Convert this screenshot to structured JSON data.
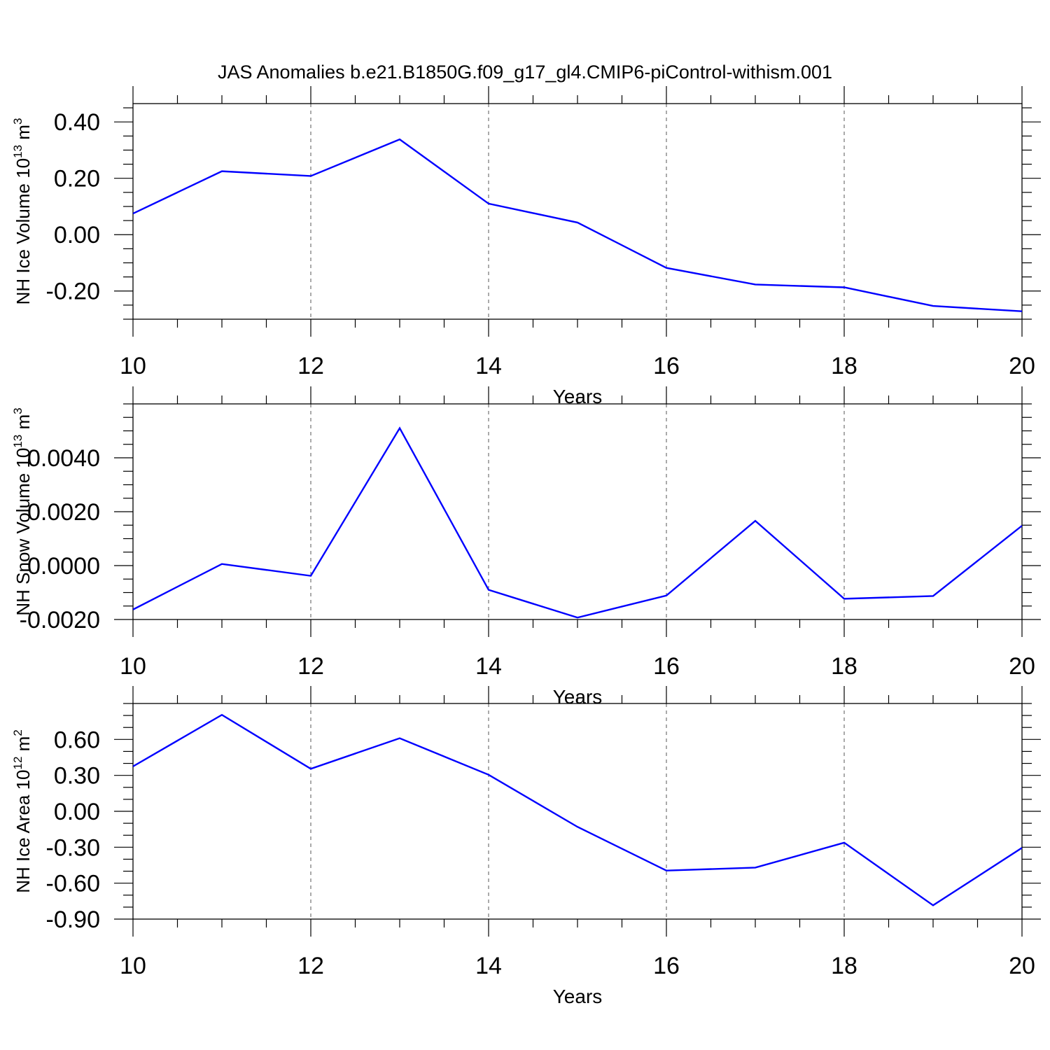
{
  "title": "JAS Anomalies b.e21.B1850G.f09_g17_gl4.CMIP6-piControl-withism.001",
  "colors": {
    "series": "#0000ff",
    "axis": "#000000",
    "grid": "#555555",
    "background": "#ffffff"
  },
  "chart_data": [
    {
      "type": "line",
      "xlabel": "Years",
      "ylabel": {
        "text": "NH Ice Volume 10",
        "sup": "13",
        "unit": " m",
        "unit_sup": "3"
      },
      "x": [
        10,
        11,
        12,
        13,
        14,
        15,
        16,
        17,
        18,
        19,
        20
      ],
      "series": [
        {
          "values": [
            0.075,
            0.225,
            0.208,
            0.338,
            0.11,
            0.043,
            -0.118,
            -0.177,
            -0.187,
            -0.253,
            -0.272
          ]
        }
      ],
      "xlim": [
        10,
        20
      ],
      "ylim": [
        -0.3,
        0.465
      ],
      "xticks": [
        10,
        12,
        14,
        16,
        18,
        20
      ],
      "xtick_labels": [
        "10",
        "12",
        "14",
        "16",
        "18",
        "20"
      ],
      "yticks": [
        0.4,
        0.2,
        0.0,
        -0.2
      ],
      "ytick_labels": [
        "0.40",
        "0.20",
        "0.00",
        "-0.20"
      ],
      "yminor_step": 0.05,
      "grid": "vertical dashed at major x ticks"
    },
    {
      "type": "line",
      "xlabel": "Years",
      "ylabel": {
        "text": "NH Snow Volume 10",
        "sup": "13",
        "unit": " m",
        "unit_sup": "3"
      },
      "x": [
        10,
        11,
        12,
        13,
        14,
        15,
        16,
        17,
        18,
        19,
        20
      ],
      "series": [
        {
          "values": [
            -0.00163,
            6e-05,
            -0.00038,
            0.0051,
            -0.0009,
            -0.00193,
            -0.00111,
            0.00166,
            -0.00123,
            -0.00113,
            0.00148
          ]
        }
      ],
      "xlim": [
        10,
        20
      ],
      "ylim": [
        -0.002,
        0.006
      ],
      "xticks": [
        10,
        12,
        14,
        16,
        18,
        20
      ],
      "xtick_labels": [
        "10",
        "12",
        "14",
        "16",
        "18",
        "20"
      ],
      "yticks": [
        0.004,
        0.002,
        0.0,
        -0.002
      ],
      "ytick_labels": [
        "0.0040",
        "0.0020",
        "0.0000",
        "-0.0020"
      ],
      "yminor_step": 0.0005,
      "grid": "vertical dashed at major x ticks"
    },
    {
      "type": "line",
      "xlabel": "Years",
      "ylabel": {
        "text": "NH Ice Area 10",
        "sup": "12",
        "unit": " m",
        "unit_sup": "2"
      },
      "x": [
        10,
        11,
        12,
        13,
        14,
        15,
        16,
        17,
        18,
        19,
        20
      ],
      "series": [
        {
          "values": [
            0.375,
            0.805,
            0.355,
            0.61,
            0.305,
            -0.13,
            -0.495,
            -0.47,
            -0.262,
            -0.785,
            -0.305
          ]
        }
      ],
      "xlim": [
        10,
        20
      ],
      "ylim": [
        -0.9,
        0.9
      ],
      "xticks": [
        10,
        12,
        14,
        16,
        18,
        20
      ],
      "xtick_labels": [
        "10",
        "12",
        "14",
        "16",
        "18",
        "20"
      ],
      "yticks": [
        0.6,
        0.3,
        0.0,
        -0.3,
        -0.6,
        -0.9
      ],
      "ytick_labels": [
        "0.60",
        "0.30",
        "0.00",
        "-0.30",
        "-0.60",
        "-0.90"
      ],
      "yminor_step": 0.1,
      "grid": "vertical dashed at major x ticks"
    }
  ]
}
